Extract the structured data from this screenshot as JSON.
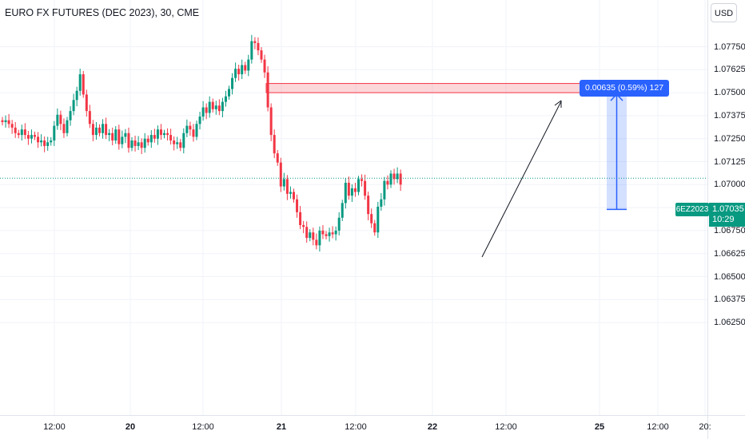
{
  "header": {
    "title": "EURO FX FUTURES (DEC 2023), 30, CME",
    "currency_button": "USD"
  },
  "price_tags": {
    "symbol": "6EZ2023",
    "last_price": "1.07035",
    "countdown": "10:29"
  },
  "measure_tool": {
    "label": "0.00635 (0.59%) 127"
  },
  "colors": {
    "up": "#089981",
    "down": "#f23645",
    "accent": "#2962ff",
    "grid": "#f0f3fa"
  },
  "chart_data": {
    "type": "candlestick",
    "x_tick_labels": [
      "12:00",
      "20",
      "12:00",
      "21",
      "12:00",
      "22",
      "12:00",
      "25",
      "12:00",
      "20:"
    ],
    "y_tick_labels": [
      "1.07750",
      "1.07625",
      "1.07500",
      "1.07375",
      "1.07250",
      "1.07125",
      "1.07000",
      "1.06875",
      "1.06750",
      "1.06625",
      "1.06500",
      "1.06375",
      "1.06250"
    ],
    "ylim": [
      1.0618,
      1.0786
    ],
    "last_price": 1.07035,
    "grid": true,
    "candles_close_path": [
      1.0734,
      1.0735,
      1.0733,
      1.0731,
      1.0728,
      1.0727,
      1.073,
      1.0727,
      1.0725,
      1.0727,
      1.0726,
      1.0723,
      1.0724,
      1.0721,
      1.0723,
      1.0724,
      1.0732,
      1.0738,
      1.0733,
      1.0728,
      1.0735,
      1.074,
      1.0746,
      1.0751,
      1.076,
      1.0749,
      1.074,
      1.0733,
      1.0727,
      1.0731,
      1.0728,
      1.0733,
      1.0727,
      1.0728,
      1.0724,
      1.073,
      1.0722,
      1.0726,
      1.0728,
      1.072,
      1.0724,
      1.0721,
      1.0723,
      1.072,
      1.0725,
      1.0723,
      1.0727,
      1.0725,
      1.073,
      1.0727,
      1.0728,
      1.0727,
      1.0724,
      1.0722,
      1.0723,
      1.072,
      1.0728,
      1.0732,
      1.073,
      1.0726,
      1.0733,
      1.0737,
      1.0742,
      1.0739,
      1.0745,
      1.0741,
      1.0743,
      1.074,
      1.0745,
      1.0748,
      1.0752,
      1.0758,
      1.0763,
      1.076,
      1.0765,
      1.0762,
      1.0768,
      1.0778,
      1.0777,
      1.0773,
      1.0768,
      1.0761,
      1.0742,
      1.0727,
      1.0717,
      1.0712,
      1.0699,
      1.0703,
      1.0695,
      1.0696,
      1.0692,
      1.0685,
      1.0678,
      1.0677,
      1.0671,
      1.0674,
      1.067,
      1.0667,
      1.0675,
      1.0673,
      1.0672,
      1.0674,
      1.0673,
      1.0675,
      1.0682,
      1.069,
      1.0701,
      1.0694,
      1.0698,
      1.0696,
      1.0703,
      1.0702,
      1.0694,
      1.0684,
      1.0679,
      1.0674,
      1.0688,
      1.0692,
      1.0702,
      1.07,
      1.0706,
      1.0703,
      1.0706,
      1.07
    ],
    "annotations": {
      "resistance_zone": [
        1.075,
        1.0755
      ],
      "measure_range": [
        1.06865,
        1.075
      ],
      "measure_change": 0.00635,
      "measure_percent": 0.59,
      "measure_ticks": 127
    }
  }
}
